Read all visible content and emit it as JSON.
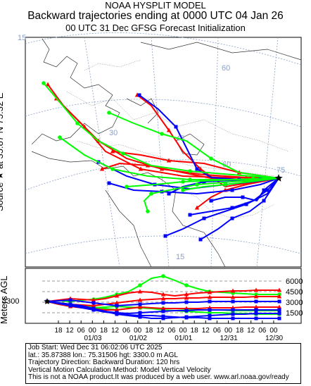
{
  "title": {
    "line1": "NOAA HYSPLIT MODEL",
    "line2": "Backward trajectories ending at 0000 UTC 04 Jan 26",
    "line3": "00 UTC 31 Dec    GFSG  Forecast Initialization"
  },
  "side_label": "Source ★ at   35.87 N   75.32 E",
  "meters_label": "Meters AGL",
  "map": {
    "grid_labels": [
      "15",
      "30",
      "45",
      "60",
      "75",
      "60",
      "15"
    ],
    "source_marker": "star-icon",
    "colors": {
      "red": "#ff0000",
      "blue": "#0000ff",
      "green": "#00ff00"
    }
  },
  "height_panel": {
    "source_height_label": "3300",
    "y_labels": [
      "6000",
      "4500",
      "3000",
      "1500"
    ],
    "x_hour_labels": [
      "18",
      "12",
      "06",
      "00",
      "18",
      "12",
      "06",
      "00",
      "18",
      "12",
      "06",
      "00",
      "18",
      "12",
      "06",
      "00",
      "18",
      "12",
      "06",
      "00"
    ],
    "x_date_labels": [
      "01/03",
      "01/02",
      "01/01",
      "12/31",
      "12/30"
    ]
  },
  "info": {
    "line1": "Job Start: Wed Dec 31 06:02:06 UTC 2025",
    "line2": "lat.: 35.87388   lon.: 75.31506    hgt: 3300.0 m AGL",
    "line3": "Trajectory Direction: Backward       Duration: 120 hrs",
    "line4": "Vertical Motion Calculation Method: Model Vertical Velocity",
    "line5": "This is not a NOAA product.It was produced by a web user. www.arl.noaa.gov/ready"
  }
}
